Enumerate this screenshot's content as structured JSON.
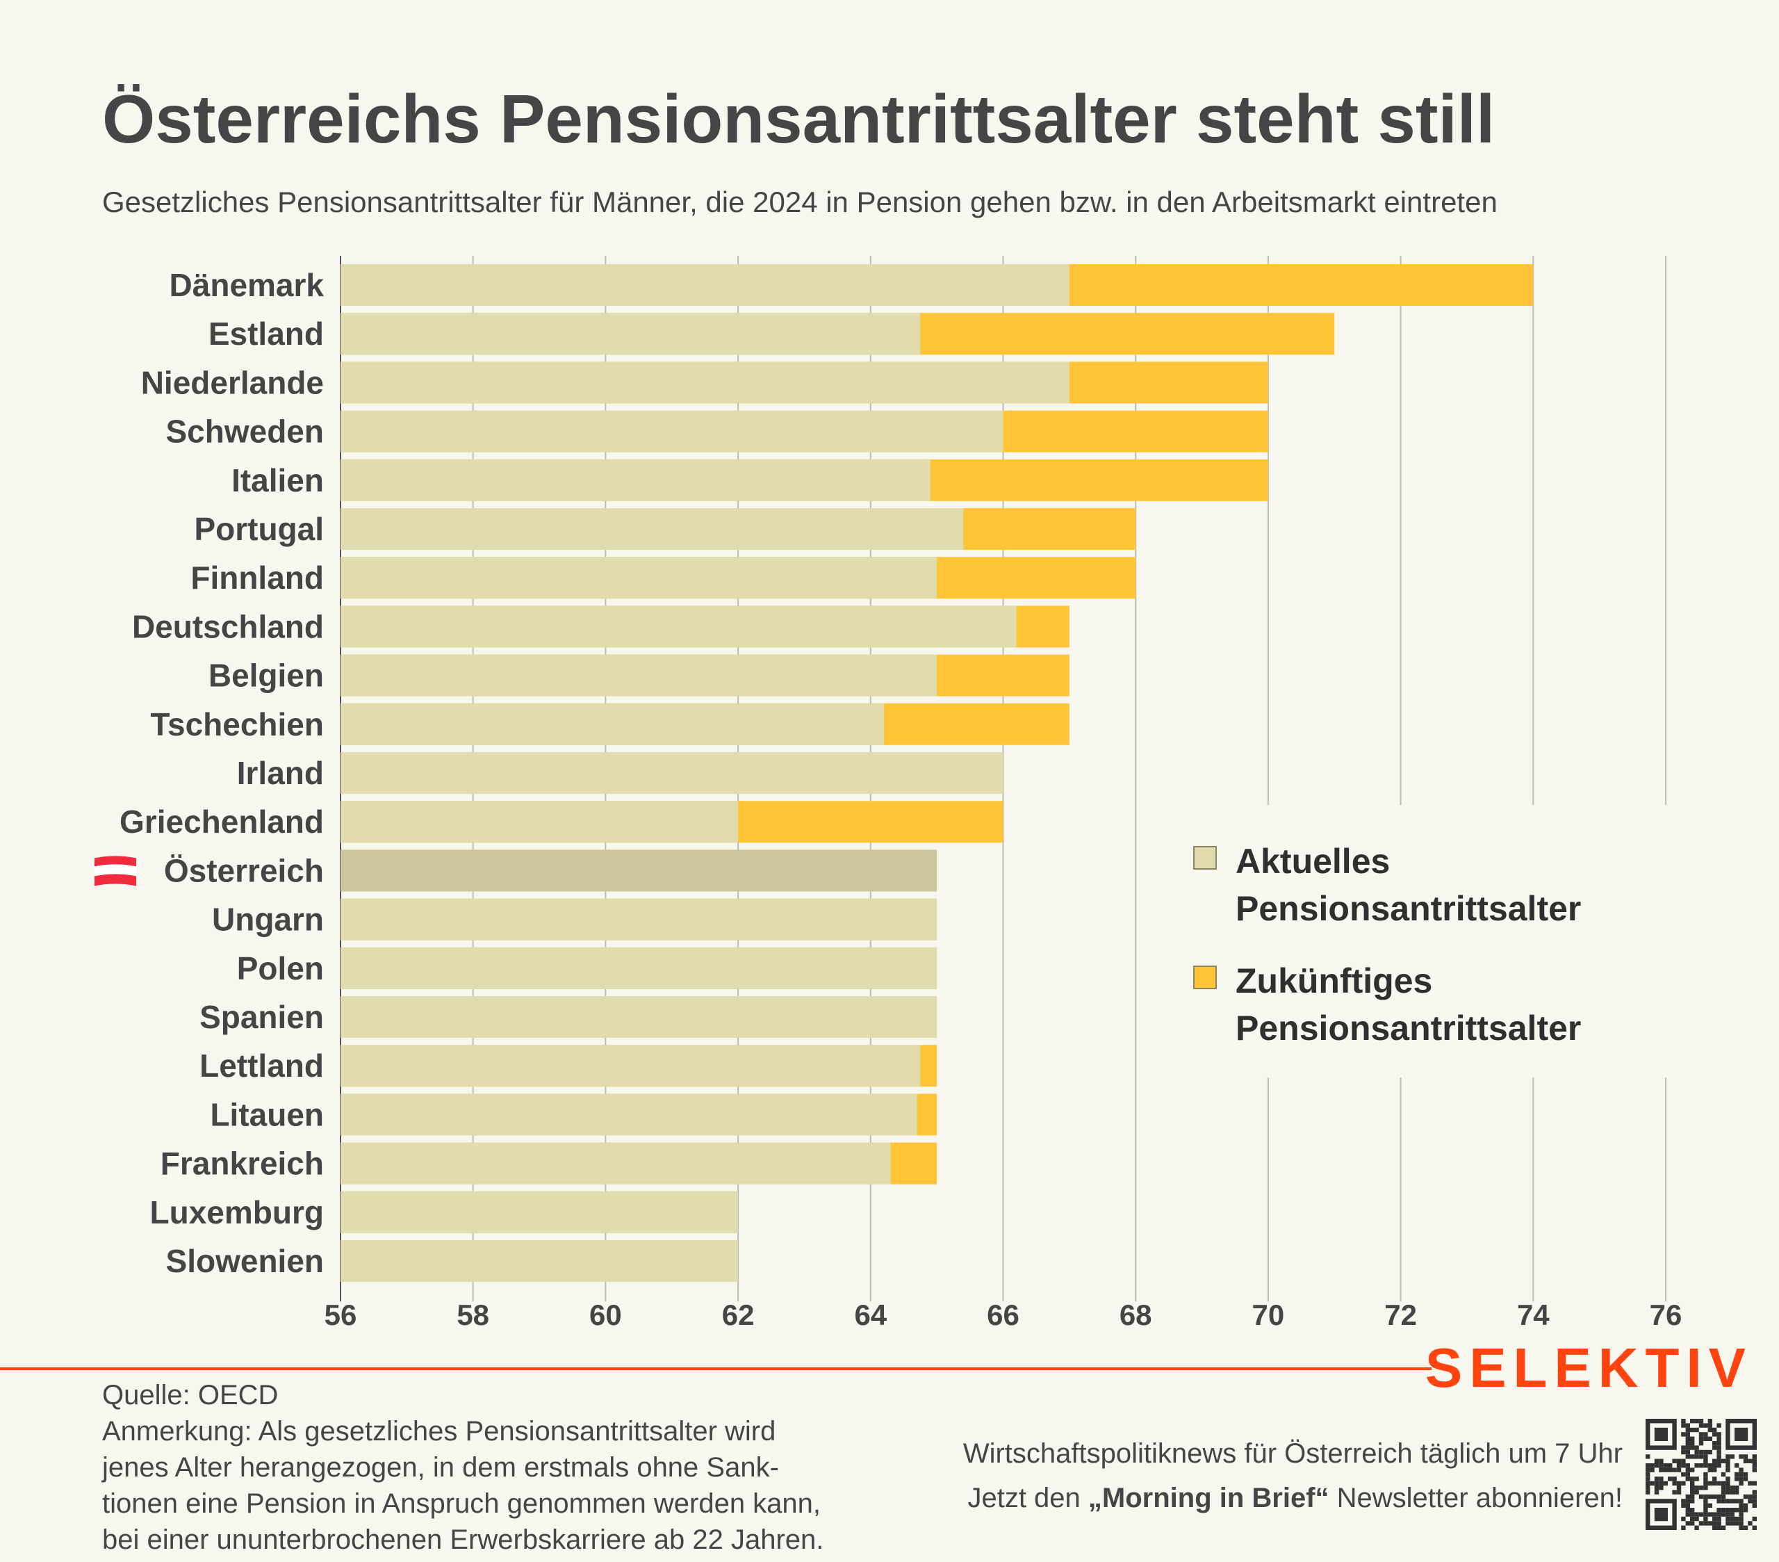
{
  "chart_data": {
    "type": "bar",
    "orientation": "horizontal",
    "stacked": "overlay",
    "title": "Österreichs Pensionsantrittsalter steht still",
    "subtitle": "Gesetzliches Pensionsantrittsalter für Männer, die 2024 in Pension gehen bzw. in den Arbeitsmarkt eintreten",
    "xlim": [
      56,
      76
    ],
    "xticks": [
      "56",
      "58",
      "60",
      "62",
      "64",
      "66",
      "68",
      "70",
      "72",
      "74",
      "76"
    ],
    "grid": true,
    "legend_placement": "right",
    "categories": [
      "Dänemark",
      "Estland",
      "Niederlande",
      "Schweden",
      "Italien",
      "Portugal",
      "Finnland",
      "Deutschland",
      "Belgien",
      "Tschechien",
      "Irland",
      "Griechenland",
      "Österreich",
      "Ungarn",
      "Polen",
      "Spanien",
      "Lettland",
      "Litauen",
      "Frankreich",
      "Luxemburg",
      "Slowenien"
    ],
    "highlight": "Österreich",
    "series": [
      {
        "name": "Aktuelles Pensionsantrittsalter",
        "color": "#e0dcad",
        "values": [
          67,
          64.75,
          67,
          66,
          64.9,
          65.4,
          65,
          66.2,
          65,
          64.2,
          66,
          62,
          65,
          65,
          65,
          65,
          64.75,
          64.7,
          64.3,
          62,
          62
        ]
      },
      {
        "name": "Zukünftiges Pensionsantrittsalter",
        "color": "#ffc438",
        "values": [
          74,
          71,
          70,
          70,
          70,
          68,
          68,
          67,
          67,
          67,
          66,
          66,
          65,
          65,
          65,
          65,
          65,
          65,
          65,
          62,
          62
        ]
      }
    ],
    "legend": [
      "Aktuelles",
      "Pensionsantrittsalter",
      "Zukünftiges",
      "Pensionsantrittsalter"
    ]
  },
  "colors": {
    "highlight_bar": "#cbc69b",
    "brand": "#ff4410",
    "text": "#454545",
    "background": "#f8f7ef"
  },
  "footer": {
    "source": "Quelle: OECD",
    "note_lines": [
      "Anmerkung: Als gesetzliches Pensionsantrittsalter wird",
      "jenes Alter herangezogen, in dem erstmals ohne Sank-",
      "tionen eine Pension in Anspruch genommen werden kann,",
      "bei einer ununterbrochenen Erwerbskarriere ab 22 Jahren."
    ],
    "logo": "SELEKTIV",
    "promo_line1": "Wirtschaftspolitiknews für Österreich täglich um 7 Uhr",
    "promo_line2_pre": "Jetzt den ",
    "promo_line2_bold": "„Morning in Brief“",
    "promo_line2_post": " Newsletter abonnieren!",
    "qr_icon": "qr-code-icon",
    "flag_icon": "austria-flag-icon"
  }
}
